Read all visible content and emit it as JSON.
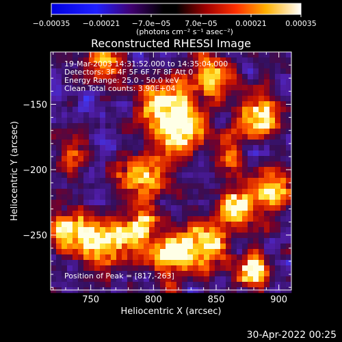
{
  "chart_data": {
    "type": "heatmap",
    "title": "Reconstructed RHESSI Image",
    "xlabel": "Heliocentric X (arcsec)",
    "ylabel": "Heliocentric Y (arcsec)",
    "xlim": [
      718,
      910
    ],
    "ylim": [
      -292,
      -110
    ],
    "x_ticks": [
      750,
      800,
      850,
      900
    ],
    "x_tick_labels": [
      "750",
      "800",
      "850",
      "900"
    ],
    "y_ticks": [
      -150,
      -200,
      -250
    ],
    "y_tick_labels": [
      "−150",
      "−200",
      "−250"
    ],
    "colorbar": {
      "range": [
        -0.00035,
        0.00035
      ],
      "tick_labels": [
        "−0.00035",
        "−0.00021",
        "−7.0e−05",
        "7.0e−05",
        "0.00021",
        "0.00035"
      ],
      "unit_label": "(photons cm⁻² s⁻¹ asec⁻²)"
    },
    "annotations": [
      "19-Mar-2003 14:31:52.000 to 14:35:04.000",
      "Detectors: 3F 4F 5F 6F 7F 8F  Att 0",
      "Energy Range: 25.0 - 50.0 keV",
      "Clean     Total counts: 3.90E+04"
    ],
    "peak_label": "Position of Peak = [817,-263]",
    "peak": [
      817,
      -263
    ],
    "bright_sources": [
      {
        "x": 808,
        "y": -152,
        "v": 1.0,
        "r": 14
      },
      {
        "x": 822,
        "y": -172,
        "v": 0.85,
        "r": 12
      },
      {
        "x": 790,
        "y": -205,
        "v": 0.8,
        "r": 12
      },
      {
        "x": 735,
        "y": -245,
        "v": 0.9,
        "r": 13
      },
      {
        "x": 762,
        "y": -255,
        "v": 0.85,
        "r": 12
      },
      {
        "x": 790,
        "y": -245,
        "v": 0.8,
        "r": 11
      },
      {
        "x": 817,
        "y": -263,
        "v": 1.0,
        "r": 12
      },
      {
        "x": 842,
        "y": -255,
        "v": 0.8,
        "r": 12
      },
      {
        "x": 868,
        "y": -225,
        "v": 0.85,
        "r": 11
      },
      {
        "x": 895,
        "y": -215,
        "v": 0.9,
        "r": 11
      },
      {
        "x": 885,
        "y": -160,
        "v": 0.95,
        "r": 11
      },
      {
        "x": 845,
        "y": -130,
        "v": 0.8,
        "r": 12
      },
      {
        "x": 878,
        "y": -275,
        "v": 0.85,
        "r": 10
      },
      {
        "x": 762,
        "y": -118,
        "v": 0.7,
        "r": 10
      },
      {
        "x": 735,
        "y": -190,
        "v": 0.55,
        "r": 10
      },
      {
        "x": 860,
        "y": -188,
        "v": 0.55,
        "r": 9
      }
    ],
    "grid": false
  },
  "footer": {
    "date": "30-Apr-2022 00:25"
  }
}
